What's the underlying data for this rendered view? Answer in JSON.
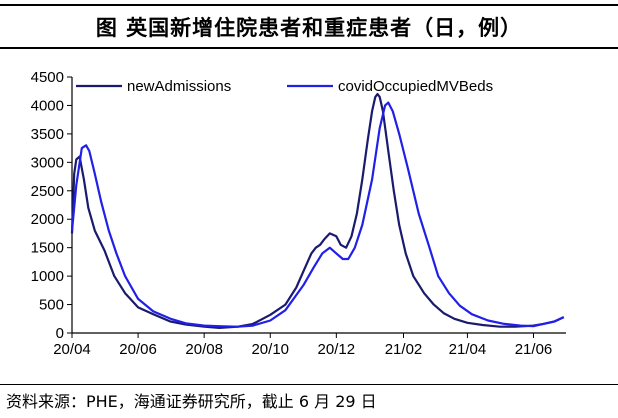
{
  "title": "图 英国新增住院患者和重症患者（日，例）",
  "source": "资料来源：PHE，海通证券研究所，截止 6 月 29 日",
  "chart_data": {
    "type": "line",
    "xlabel": "",
    "ylabel": "",
    "ylim": [
      0,
      4500
    ],
    "yticks": [
      0,
      500,
      1000,
      1500,
      2000,
      2500,
      3000,
      3500,
      4000,
      4500
    ],
    "xlim": [
      "2020-04-01",
      "2021-07-01"
    ],
    "xtick_labels": [
      "20/04",
      "20/06",
      "20/08",
      "20/10",
      "20/12",
      "21/02",
      "21/04",
      "21/06"
    ],
    "xtick_dates": [
      "2020-04-01",
      "2020-06-01",
      "2020-08-01",
      "2020-10-01",
      "2020-12-01",
      "2021-02-01",
      "2021-04-01",
      "2021-06-01"
    ],
    "grid": false,
    "legend": "top",
    "series": [
      {
        "name": "newAdmissions",
        "color": "#1a1a6e",
        "x": [
          "2020-04-01",
          "2020-04-03",
          "2020-04-05",
          "2020-04-08",
          "2020-04-12",
          "2020-04-16",
          "2020-04-22",
          "2020-05-01",
          "2020-05-10",
          "2020-05-20",
          "2020-06-01",
          "2020-06-15",
          "2020-07-01",
          "2020-07-15",
          "2020-08-01",
          "2020-08-15",
          "2020-09-01",
          "2020-09-15",
          "2020-10-01",
          "2020-10-15",
          "2020-10-25",
          "2020-11-01",
          "2020-11-08",
          "2020-11-12",
          "2020-11-16",
          "2020-11-20",
          "2020-11-25",
          "2020-12-01",
          "2020-12-05",
          "2020-12-10",
          "2020-12-15",
          "2020-12-20",
          "2020-12-25",
          "2020-12-30",
          "2021-01-03",
          "2021-01-06",
          "2021-01-08",
          "2021-01-10",
          "2021-01-13",
          "2021-01-18",
          "2021-01-23",
          "2021-01-28",
          "2021-02-03",
          "2021-02-10",
          "2021-02-20",
          "2021-03-01",
          "2021-03-10",
          "2021-03-20",
          "2021-04-01",
          "2021-04-15",
          "2021-05-01",
          "2021-05-15",
          "2021-06-01",
          "2021-06-10",
          "2021-06-20",
          "2021-06-29"
        ],
        "values": [
          1750,
          2800,
          3050,
          3100,
          2700,
          2200,
          1800,
          1450,
          1000,
          700,
          450,
          330,
          200,
          150,
          110,
          90,
          110,
          160,
          320,
          500,
          800,
          1100,
          1400,
          1500,
          1550,
          1650,
          1750,
          1700,
          1550,
          1500,
          1700,
          2100,
          2700,
          3400,
          3900,
          4150,
          4200,
          4150,
          3900,
          3200,
          2500,
          1900,
          1400,
          1000,
          700,
          500,
          350,
          250,
          180,
          140,
          110,
          110,
          130,
          160,
          200,
          280
        ]
      },
      {
        "name": "covidOccupiedMVBeds",
        "color": "#2020e8",
        "x": [
          "2020-04-01",
          "2020-04-05",
          "2020-04-10",
          "2020-04-14",
          "2020-04-17",
          "2020-04-22",
          "2020-04-28",
          "2020-05-05",
          "2020-05-12",
          "2020-05-20",
          "2020-06-01",
          "2020-06-15",
          "2020-07-01",
          "2020-07-15",
          "2020-08-01",
          "2020-08-15",
          "2020-09-01",
          "2020-09-15",
          "2020-10-01",
          "2020-10-15",
          "2020-11-01",
          "2020-11-10",
          "2020-11-18",
          "2020-11-25",
          "2020-12-01",
          "2020-12-07",
          "2020-12-12",
          "2020-12-18",
          "2020-12-25",
          "2021-01-03",
          "2021-01-10",
          "2021-01-15",
          "2021-01-18",
          "2021-01-22",
          "2021-01-28",
          "2021-02-05",
          "2021-02-15",
          "2021-02-25",
          "2021-03-05",
          "2021-03-15",
          "2021-03-25",
          "2021-04-05",
          "2021-04-20",
          "2021-05-05",
          "2021-05-20",
          "2021-06-01",
          "2021-06-10",
          "2021-06-20",
          "2021-06-29"
        ],
        "values": [
          1800,
          2600,
          3250,
          3300,
          3200,
          2800,
          2300,
          1800,
          1400,
          1000,
          600,
          380,
          250,
          170,
          130,
          120,
          110,
          130,
          220,
          400,
          850,
          1150,
          1400,
          1500,
          1400,
          1300,
          1300,
          1500,
          1900,
          2700,
          3600,
          4000,
          4050,
          3900,
          3500,
          2900,
          2100,
          1500,
          1000,
          700,
          480,
          330,
          220,
          160,
          130,
          120,
          160,
          200,
          280
        ]
      }
    ]
  }
}
